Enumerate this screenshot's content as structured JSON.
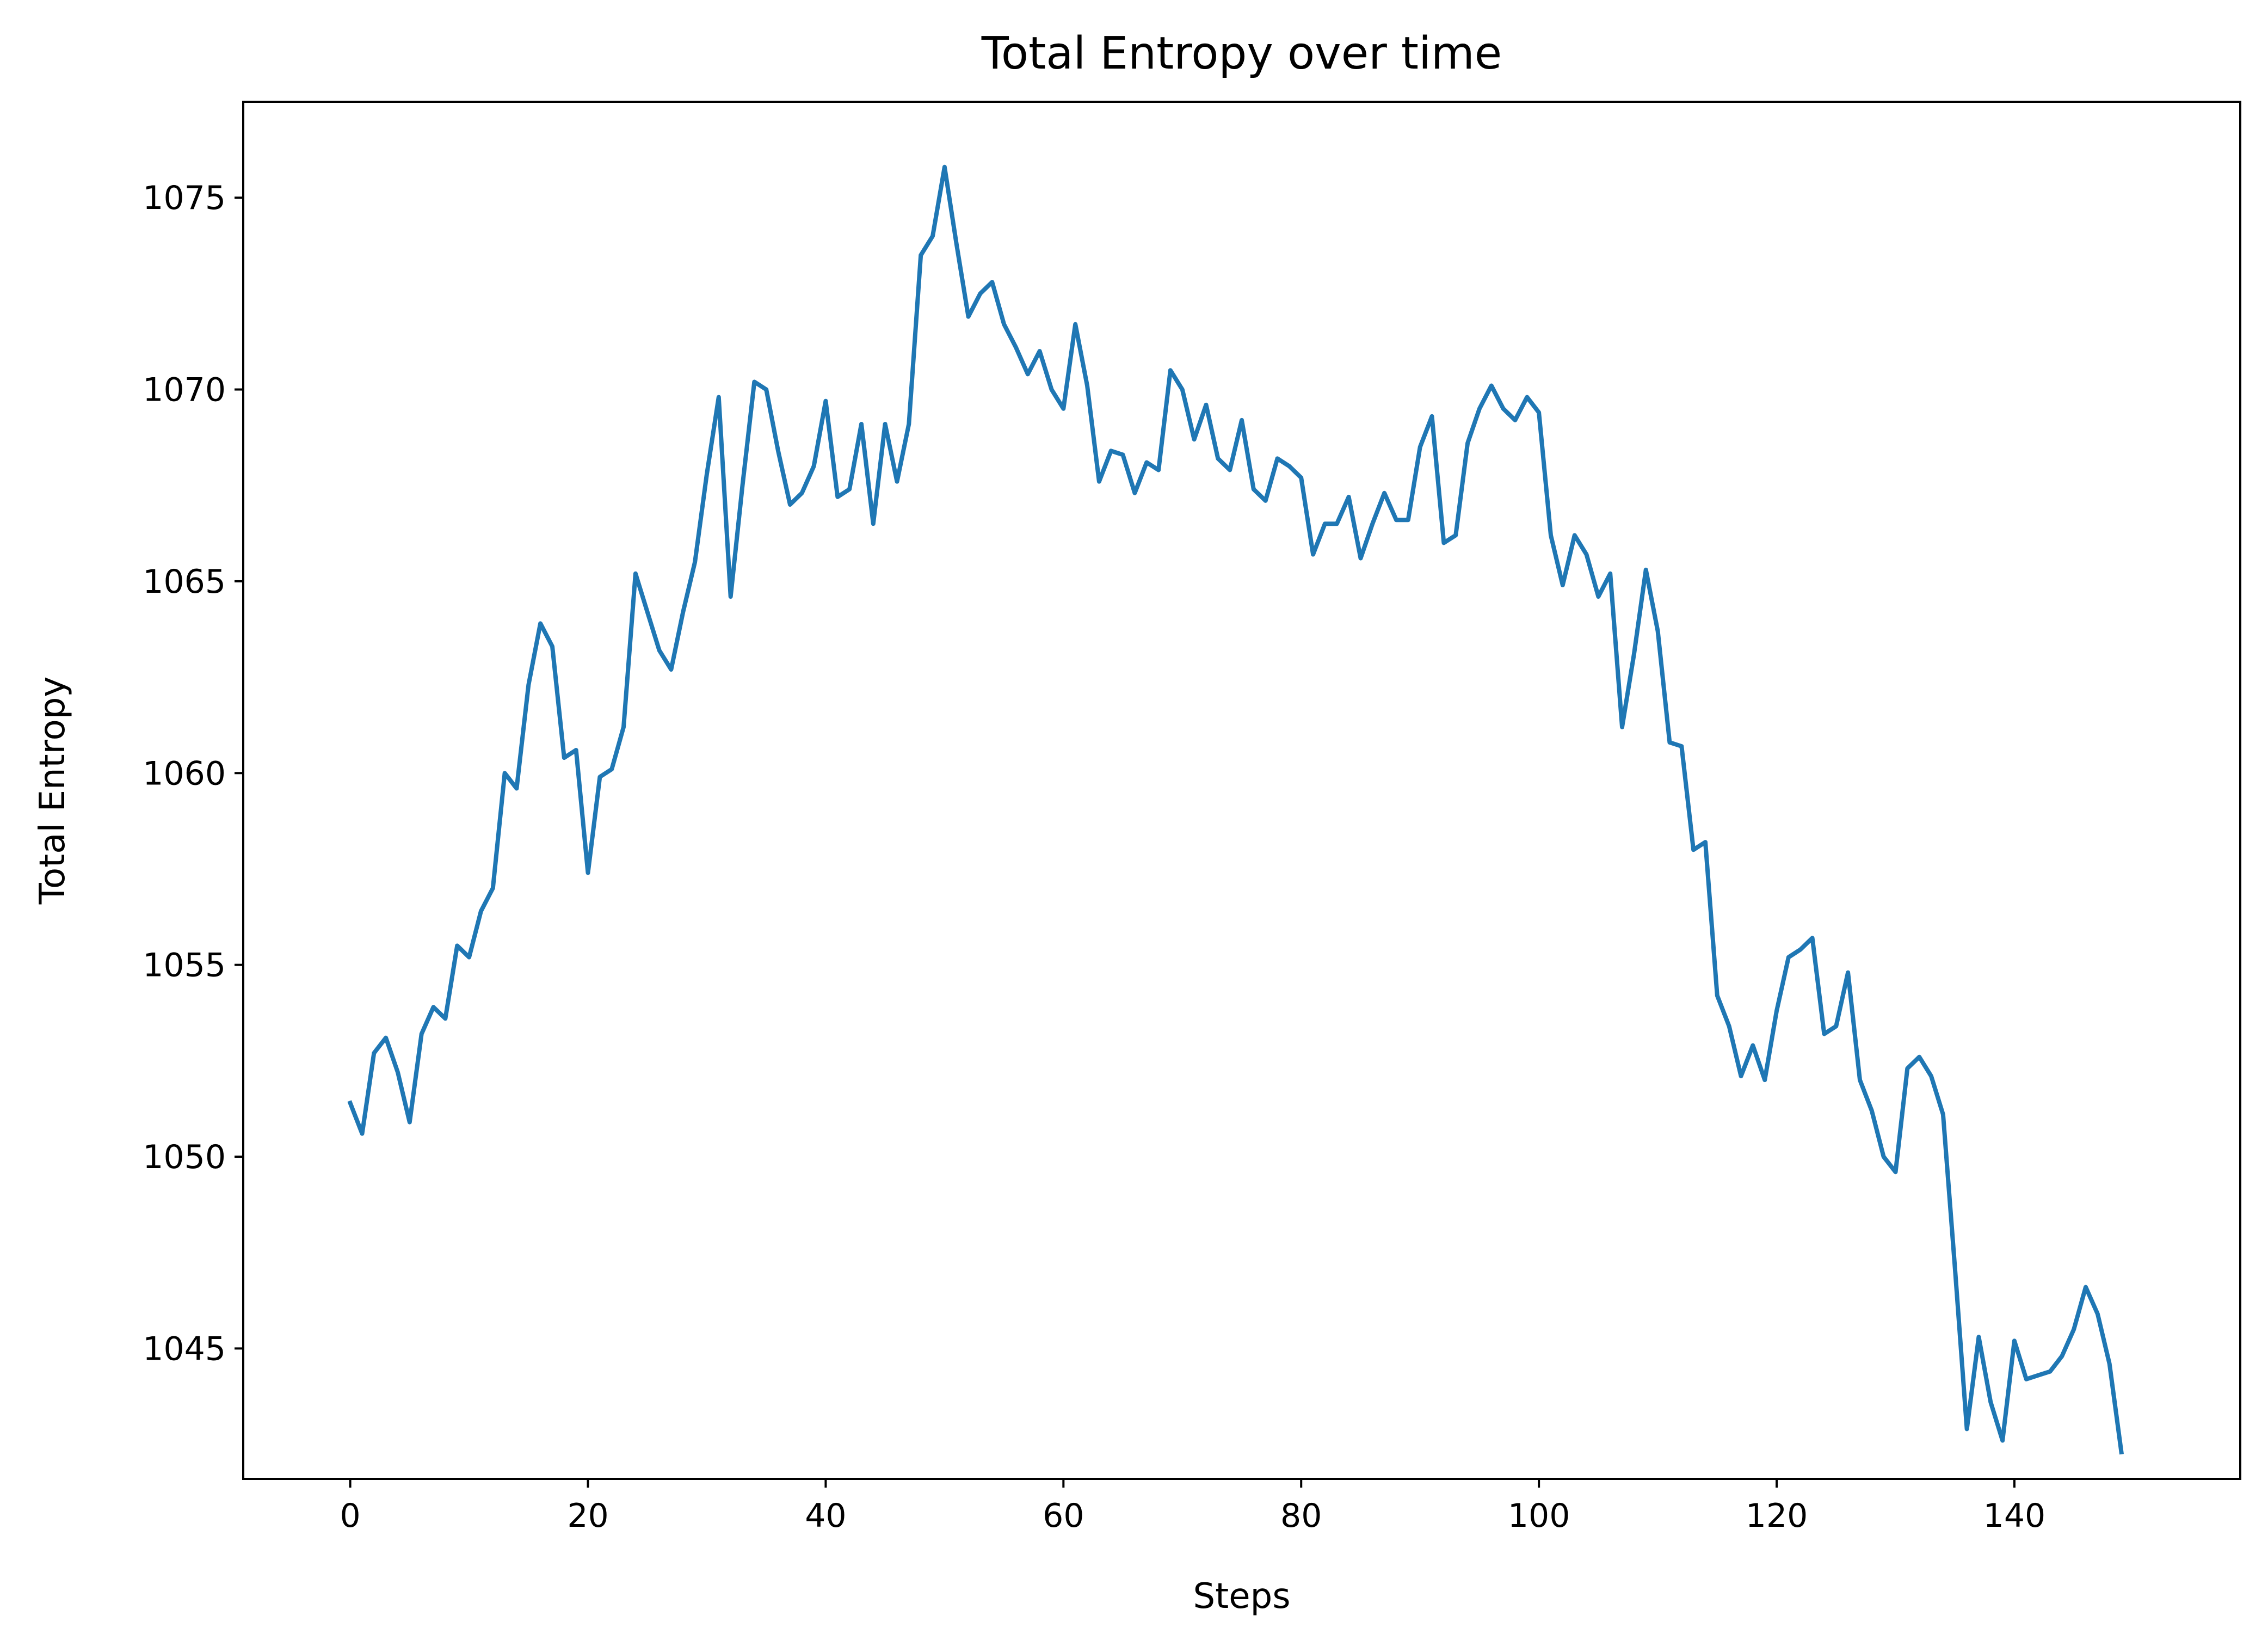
{
  "chart_data": {
    "type": "line",
    "title": "Total Entropy over time",
    "xlabel": "Steps",
    "ylabel": "Total Entropy",
    "xlim": [
      -9,
      159
    ],
    "ylim": [
      1041.6,
      1077.5
    ],
    "grid": false,
    "xticks": [
      0,
      20,
      40,
      60,
      80,
      100,
      120,
      140
    ],
    "yticks": [
      1045,
      1050,
      1055,
      1060,
      1065,
      1070,
      1075
    ],
    "colors": {
      "line": "#1f77b4"
    },
    "series": [
      {
        "name": "",
        "x": [
          0,
          1,
          2,
          3,
          4,
          5,
          6,
          7,
          8,
          9,
          10,
          11,
          12,
          13,
          14,
          15,
          16,
          17,
          18,
          19,
          20,
          21,
          22,
          23,
          24,
          25,
          26,
          27,
          28,
          29,
          30,
          31,
          32,
          33,
          34,
          35,
          36,
          37,
          38,
          39,
          40,
          41,
          42,
          43,
          44,
          45,
          46,
          47,
          48,
          49,
          50,
          51,
          52,
          53,
          54,
          55,
          56,
          57,
          58,
          59,
          60,
          61,
          62,
          63,
          64,
          65,
          66,
          67,
          68,
          69,
          70,
          71,
          72,
          73,
          74,
          75,
          76,
          77,
          78,
          79,
          80,
          81,
          82,
          83,
          84,
          85,
          86,
          87,
          88,
          89,
          90,
          91,
          92,
          93,
          94,
          95,
          96,
          97,
          98,
          99,
          100,
          101,
          102,
          103,
          104,
          105,
          106,
          107,
          108,
          109,
          110,
          111,
          112,
          113,
          114,
          115,
          116,
          117,
          118,
          119,
          120,
          121,
          122,
          123,
          124,
          125,
          126,
          127,
          128,
          129,
          130,
          131,
          132,
          133,
          134,
          135,
          136,
          137,
          138,
          139,
          140,
          141,
          142,
          143,
          144,
          145,
          146,
          147,
          148,
          149
        ],
        "values": [
          1051.4,
          1050.6,
          1052.7,
          1053.1,
          1052.2,
          1050.9,
          1053.2,
          1053.9,
          1053.6,
          1055.5,
          1055.2,
          1056.4,
          1057.0,
          1060.0,
          1059.6,
          1062.3,
          1063.9,
          1063.3,
          1060.4,
          1060.6,
          1057.4,
          1059.9,
          1060.1,
          1061.2,
          1065.2,
          1064.2,
          1063.2,
          1062.7,
          1064.2,
          1065.5,
          1067.8,
          1069.8,
          1064.6,
          1067.5,
          1070.2,
          1070.0,
          1068.4,
          1067.0,
          1067.3,
          1068.0,
          1069.7,
          1067.2,
          1067.4,
          1069.1,
          1066.5,
          1069.1,
          1067.6,
          1069.1,
          1073.5,
          1074.0,
          1075.8,
          1073.8,
          1071.9,
          1072.5,
          1072.8,
          1071.7,
          1071.1,
          1070.4,
          1071.0,
          1070.0,
          1069.5,
          1071.7,
          1070.1,
          1067.6,
          1068.4,
          1068.3,
          1067.3,
          1068.1,
          1067.9,
          1070.5,
          1070.0,
          1068.7,
          1069.6,
          1068.2,
          1067.9,
          1069.2,
          1067.4,
          1067.1,
          1068.2,
          1068.0,
          1067.7,
          1065.7,
          1066.5,
          1066.5,
          1067.2,
          1065.6,
          1066.5,
          1067.3,
          1066.6,
          1066.6,
          1068.5,
          1069.3,
          1066.0,
          1066.2,
          1068.6,
          1069.5,
          1070.1,
          1069.5,
          1069.2,
          1069.8,
          1069.4,
          1066.2,
          1064.9,
          1066.2,
          1065.7,
          1064.6,
          1065.2,
          1061.2,
          1063.1,
          1065.3,
          1063.7,
          1060.8,
          1060.7,
          1058.0,
          1058.2,
          1054.2,
          1053.4,
          1052.1,
          1052.9,
          1052.0,
          1053.8,
          1055.2,
          1055.4,
          1055.7,
          1053.2,
          1053.4,
          1054.8,
          1052.0,
          1051.2,
          1050.0,
          1049.6,
          1052.3,
          1052.6,
          1052.1,
          1051.1,
          1047.1,
          1042.9,
          1045.3,
          1043.6,
          1042.6,
          1045.2,
          1044.2,
          1044.3,
          1044.4,
          1044.8,
          1045.5,
          1046.6,
          1045.9,
          1044.6,
          1042.3
        ]
      }
    ]
  }
}
